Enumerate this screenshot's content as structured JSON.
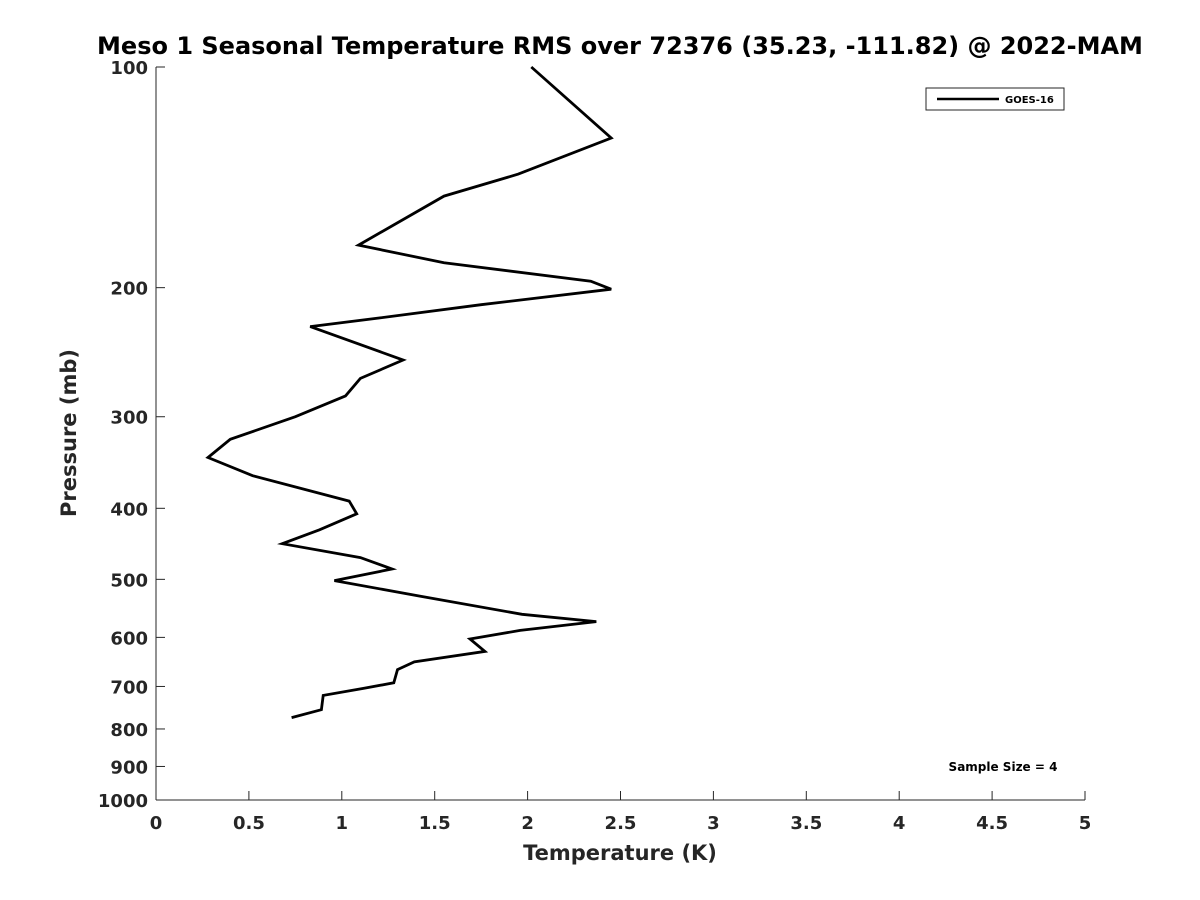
{
  "chart_data": {
    "type": "line",
    "title": "Meso 1 Seasonal Temperature RMS over 72376 (35.23, -111.82) @ 2022-MAM",
    "xlabel": "Temperature (K)",
    "ylabel": "Pressure (mb)",
    "xlim": [
      0,
      5
    ],
    "ylim": [
      100,
      1000
    ],
    "y_scale": "log",
    "y_reversed": true,
    "x_ticks": [
      "0",
      "0.5",
      "1",
      "1.5",
      "2",
      "2.5",
      "3",
      "3.5",
      "4",
      "4.5",
      "5"
    ],
    "y_ticks": [
      "100",
      "200",
      "300",
      "400",
      "500",
      "600",
      "700",
      "800",
      "900",
      "1000"
    ],
    "grid": false,
    "legend_position": "top-right",
    "annotation": "Sample Size = 4",
    "series": [
      {
        "name": "GOES-16",
        "color": "#000000",
        "points": [
          [
            2.02,
            100
          ],
          [
            2.45,
            125
          ],
          [
            1.95,
            140
          ],
          [
            1.55,
            150
          ],
          [
            1.09,
            175
          ],
          [
            1.55,
            185
          ],
          [
            2.34,
            196
          ],
          [
            2.45,
            201
          ],
          [
            1.75,
            211
          ],
          [
            1.2,
            220
          ],
          [
            0.83,
            226
          ],
          [
            1.33,
            251
          ],
          [
            1.1,
            266
          ],
          [
            1.02,
            281
          ],
          [
            0.75,
            300
          ],
          [
            0.4,
            322
          ],
          [
            0.28,
            341
          ],
          [
            0.52,
            361
          ],
          [
            1.04,
            391
          ],
          [
            1.08,
            407
          ],
          [
            0.88,
            428
          ],
          [
            0.68,
            447
          ],
          [
            1.1,
            467
          ],
          [
            1.27,
            484
          ],
          [
            0.96,
            502
          ],
          [
            1.42,
            527
          ],
          [
            1.97,
            558
          ],
          [
            2.37,
            571
          ],
          [
            1.96,
            587
          ],
          [
            1.69,
            603
          ],
          [
            1.77,
            627
          ],
          [
            1.39,
            648
          ],
          [
            1.3,
            664
          ],
          [
            1.28,
            692
          ],
          [
            1.12,
            704
          ],
          [
            0.9,
            720
          ],
          [
            0.89,
            753
          ],
          [
            0.73,
            772
          ]
        ]
      }
    ]
  }
}
